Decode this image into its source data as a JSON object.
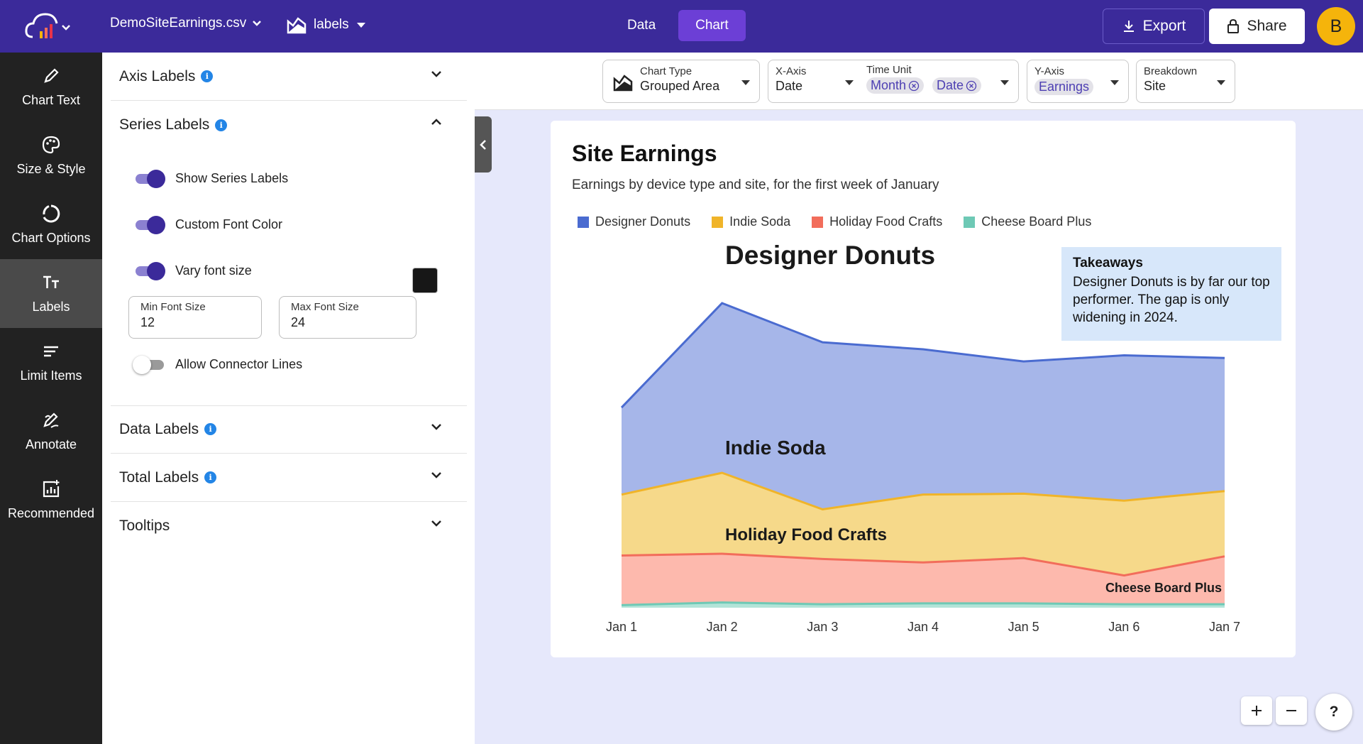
{
  "header": {
    "file_name": "DemoSiteEarnings.csv",
    "sheet_name": "labels",
    "tabs": [
      {
        "label": "Data"
      },
      {
        "label": "Chart"
      }
    ],
    "export_label": "Export",
    "share_label": "Share",
    "avatar_initial": "B",
    "brand_color": "#3b2a9a"
  },
  "leftnav": {
    "items": [
      {
        "label": "Chart Text",
        "icon": "pencil-icon"
      },
      {
        "label": "Size & Style",
        "icon": "palette-icon"
      },
      {
        "label": "Chart Options",
        "icon": "circle-icon"
      },
      {
        "label": "Labels",
        "icon": "text-size-icon"
      },
      {
        "label": "Limit Items",
        "icon": "list-icon"
      },
      {
        "label": "Annotate",
        "icon": "annotate-icon"
      },
      {
        "label": "Recommended",
        "icon": "chart-plus-icon"
      }
    ]
  },
  "panel": {
    "axis_labels": "Axis Labels",
    "series_labels": "Series Labels",
    "show_series_labels": "Show Series Labels",
    "custom_font_color": "Custom Font Color",
    "vary_font_size": "Vary font size",
    "min_font_label": "Min Font Size",
    "min_font_value": "12",
    "max_font_label": "Max Font Size",
    "max_font_value": "24",
    "allow_connector_lines": "Allow Connector Lines",
    "data_labels": "Data Labels",
    "total_labels": "Total Labels",
    "tooltips": "Tooltips"
  },
  "config": {
    "chart_type_label": "Chart Type",
    "chart_type_value": "Grouped Area",
    "x_axis_label": "X-Axis",
    "x_axis_value": "Date",
    "time_unit_label": "Time Unit",
    "time_unit_chips": [
      "Month",
      "Date"
    ],
    "y_axis_label": "Y-Axis",
    "y_axis_value": "Earnings",
    "breakdown_label": "Breakdown",
    "breakdown_value": "Site"
  },
  "takeaway": {
    "title": "Takeaways",
    "body": "Designer Donuts is by far our top performer. The gap is only widening in 2024."
  },
  "chart_data": {
    "type": "area",
    "title": "Site Earnings",
    "subtitle": "Earnings by device type and site, for the first week of January",
    "xlabel": "",
    "ylabel": "",
    "grid": false,
    "categories": [
      "Jan 1",
      "Jan 2",
      "Jan 3",
      "Jan 4",
      "Jan 5",
      "Jan 6",
      "Jan 7"
    ],
    "ylim": [
      0,
      350
    ],
    "series": [
      {
        "name": "Designer Donuts",
        "color": "#4a6bd0",
        "fill": "#a6b6e9",
        "values": [
          230,
          350,
          305,
          297,
          283,
          290,
          287
        ]
      },
      {
        "name": "Indie Soda",
        "color": "#f0b429",
        "fill": "#f6d98a",
        "values": [
          130,
          155,
          113,
          130,
          131,
          123,
          134
        ]
      },
      {
        "name": "Holiday Food Crafts",
        "color": "#f26d5b",
        "fill": "#fdb9ad",
        "values": [
          60,
          62,
          56,
          52,
          57,
          37,
          59
        ]
      },
      {
        "name": "Cheese Board Plus",
        "color": "#6ec9b5",
        "fill": "#b2e4d8",
        "values": [
          3,
          6,
          4,
          5,
          5,
          4,
          4
        ]
      }
    ],
    "series_labels": [
      {
        "name": "Designer Donuts",
        "font": 24
      },
      {
        "name": "Indie Soda",
        "font": 18
      },
      {
        "name": "Holiday Food Crafts",
        "font": 16
      },
      {
        "name": "Cheese Board Plus",
        "font": 12
      }
    ]
  }
}
